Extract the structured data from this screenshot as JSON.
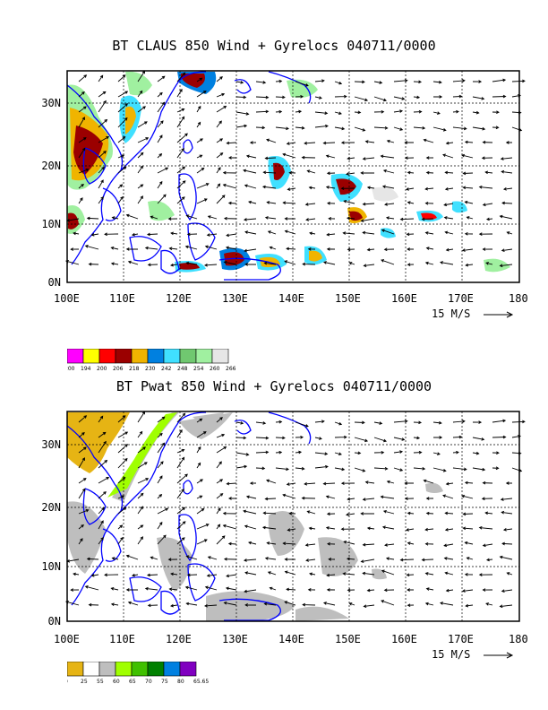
{
  "maps": [
    {
      "title": "BT CLAUS 850 Wind + Gyrelocs 040711/0000",
      "lat_labels": [
        "30N",
        "20N",
        "10N",
        "0N"
      ],
      "lon_labels": [
        "100E",
        "110E",
        "120E",
        "130E",
        "140E",
        "150E",
        "160E",
        "170E",
        "180"
      ],
      "scale_label": "15 M/S",
      "legend": {
        "colors": [
          "#ff00ff",
          "#ffff00",
          "#ff0000",
          "#9b0000",
          "#f0b400",
          "#0080e0",
          "#40e0ff",
          "#70c870",
          "#a0f0a0",
          "#e6e6e6"
        ],
        "labels": [
          "200",
          "194",
          "200",
          "206",
          "218",
          "230",
          "242",
          "248",
          "254",
          "260",
          "266"
        ]
      }
    },
    {
      "title": "BT Pwat 850 Wind + Gyrelocs 040711/0000",
      "lat_labels": [
        "30N",
        "20N",
        "10N",
        "0N"
      ],
      "lon_labels": [
        "100E",
        "110E",
        "120E",
        "130E",
        "140E",
        "150E",
        "160E",
        "170E",
        "180"
      ],
      "scale_label": "15 M/S",
      "legend": {
        "colors": [
          "#e6b414",
          "#ffffff",
          "#bebebe",
          "#a0ff00",
          "#40c000",
          "#008000",
          "#0080e0",
          "#8000c0"
        ],
        "labels": [
          "0",
          "25",
          "55",
          "60",
          "65",
          "70",
          "75",
          "80",
          "65.65"
        ]
      }
    }
  ]
}
